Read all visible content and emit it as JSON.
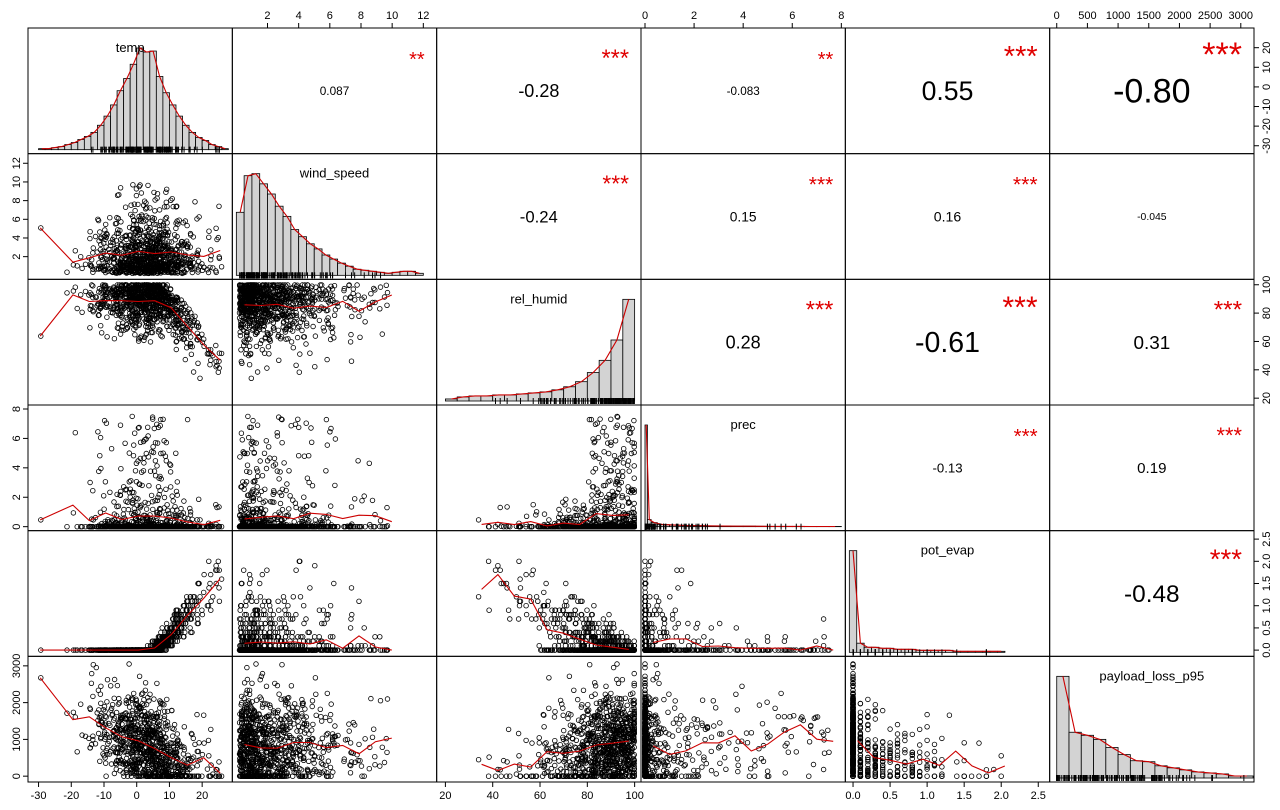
{
  "chart_data": {
    "type": "scatter-matrix",
    "variables": [
      "temp",
      "wind_speed",
      "rel_humid",
      "prec",
      "pot_evap",
      "payload_loss_p95"
    ],
    "ranges": [
      [
        -32,
        28
      ],
      [
        0,
        12.6
      ],
      [
        18,
        101
      ],
      [
        0,
        8
      ],
      [
        -0.05,
        2.6
      ],
      [
        -50,
        3150
      ]
    ],
    "ticks": [
      [
        -30,
        -20,
        -10,
        0,
        10,
        20
      ],
      [
        2,
        4,
        6,
        8,
        10,
        12
      ],
      [
        20,
        40,
        60,
        80,
        100
      ],
      [
        0,
        2,
        4,
        6,
        8
      ],
      [
        0.0,
        0.5,
        1.0,
        1.5,
        2.0,
        2.5
      ],
      [
        0,
        500,
        1000,
        1500,
        2000,
        2500,
        3000
      ]
    ],
    "left_axis_ticks": {
      "1": [
        "2",
        "4",
        "6",
        "8",
        "10",
        "12"
      ],
      "3": [
        "0",
        "2",
        "4",
        "6",
        "8"
      ],
      "5": [
        "0",
        "1000",
        "2000",
        "3000"
      ]
    },
    "right_axis_ticks": {
      "0": [
        "-30",
        "-20",
        "-10",
        "0",
        "10",
        "20"
      ],
      "2": [
        "20",
        "40",
        "60",
        "80",
        "100"
      ],
      "4": [
        "0.0",
        "0.5",
        "1.0",
        "1.5",
        "2.0",
        "2.5"
      ]
    },
    "top_axis_ticks": {
      "1": [
        "2",
        "4",
        "6",
        "8",
        "10",
        "12"
      ],
      "3": [
        "0",
        "2",
        "4",
        "6",
        "8"
      ],
      "5": [
        "0",
        "500",
        "1000",
        "1500",
        "2000",
        "2500",
        "3000"
      ]
    },
    "bottom_axis_ticks": {
      "0": [
        "-30",
        "-20",
        "-10",
        "0",
        "10",
        "20"
      ],
      "2": [
        "20",
        "40",
        "60",
        "80",
        "100"
      ],
      "4": [
        "0.0",
        "0.5",
        "1.0",
        "1.5",
        "2.0",
        "2.5"
      ]
    },
    "correlations": [
      {
        "row": 0,
        "col": 1,
        "r": "0.087",
        "stars": "**"
      },
      {
        "row": 0,
        "col": 2,
        "r": "-0.28",
        "stars": "***"
      },
      {
        "row": 0,
        "col": 3,
        "r": "-0.083",
        "stars": "**"
      },
      {
        "row": 0,
        "col": 4,
        "r": "0.55",
        "stars": "***"
      },
      {
        "row": 0,
        "col": 5,
        "r": "-0.80",
        "stars": "***"
      },
      {
        "row": 1,
        "col": 2,
        "r": "-0.24",
        "stars": "***"
      },
      {
        "row": 1,
        "col": 3,
        "r": "0.15",
        "stars": "***"
      },
      {
        "row": 1,
        "col": 4,
        "r": "0.16",
        "stars": "***"
      },
      {
        "row": 1,
        "col": 5,
        "r": "-0.045",
        "stars": ""
      },
      {
        "row": 2,
        "col": 3,
        "r": "0.28",
        "stars": "***"
      },
      {
        "row": 2,
        "col": 4,
        "r": "-0.61",
        "stars": "***"
      },
      {
        "row": 2,
        "col": 5,
        "r": "0.31",
        "stars": "***"
      },
      {
        "row": 3,
        "col": 4,
        "r": "-0.13",
        "stars": "***"
      },
      {
        "row": 3,
        "col": 5,
        "r": "0.19",
        "stars": "***"
      },
      {
        "row": 4,
        "col": 5,
        "r": "-0.48",
        "stars": "***"
      }
    ],
    "histograms": [
      {
        "var": "temp",
        "bins": [
          -30,
          -28,
          -26,
          -24,
          -22,
          -20,
          -18,
          -16,
          -14,
          -12,
          -10,
          -8,
          -6,
          -4,
          -2,
          0,
          2,
          4,
          6,
          8,
          10,
          12,
          14,
          16,
          18,
          20,
          22,
          24,
          26,
          28
        ],
        "density": [
          0.01,
          0.01,
          0.02,
          0.03,
          0.05,
          0.07,
          0.1,
          0.13,
          0.17,
          0.24,
          0.33,
          0.44,
          0.58,
          0.7,
          0.84,
          1.0,
          0.96,
          0.97,
          0.72,
          0.56,
          0.44,
          0.33,
          0.24,
          0.17,
          0.12,
          0.09,
          0.05,
          0.03,
          0.01
        ]
      },
      {
        "var": "wind_speed",
        "bins": [
          0,
          0.5,
          1,
          1.5,
          2,
          2.5,
          3,
          3.5,
          4,
          4.5,
          5,
          5.5,
          6,
          6.5,
          7,
          7.5,
          8,
          8.5,
          9,
          9.5,
          10,
          10.5,
          11,
          11.5,
          12
        ],
        "density": [
          0.62,
          0.98,
          1.0,
          0.9,
          0.8,
          0.68,
          0.58,
          0.45,
          0.38,
          0.31,
          0.26,
          0.2,
          0.16,
          0.12,
          0.09,
          0.06,
          0.05,
          0.04,
          0.03,
          0.02,
          0.03,
          0.04,
          0.04,
          0.02
        ]
      },
      {
        "var": "rel_humid",
        "bins": [
          20,
          25,
          30,
          35,
          40,
          45,
          50,
          55,
          60,
          65,
          70,
          75,
          80,
          85,
          90,
          95,
          100
        ],
        "density": [
          0.02,
          0.04,
          0.05,
          0.05,
          0.06,
          0.06,
          0.07,
          0.08,
          0.09,
          0.11,
          0.14,
          0.19,
          0.28,
          0.4,
          0.6,
          1.0
        ]
      },
      {
        "var": "prec",
        "bins": [
          0,
          0.1,
          0.25,
          0.5,
          1,
          1.5,
          2,
          2.5,
          3,
          3.5,
          4,
          4.5,
          5,
          5.5,
          6,
          6.5,
          7,
          7.5,
          8
        ],
        "density": [
          1.0,
          0.07,
          0.04,
          0.02,
          0.015,
          0.01,
          0.01,
          0.008,
          0.006,
          0.005,
          0.005,
          0.004,
          0.003,
          0.003,
          0.003,
          0.002,
          0.002,
          0.002
        ]
      },
      {
        "var": "pot_evap",
        "bins": [
          -0.05,
          0.05,
          0.15,
          0.25,
          0.35,
          0.45,
          0.55,
          0.65,
          0.75,
          0.85,
          0.95,
          1.05,
          1.15,
          1.25,
          1.35,
          1.45,
          1.55,
          1.65,
          1.75,
          1.85,
          1.95,
          2.05
        ],
        "density": [
          1.0,
          0.09,
          0.05,
          0.05,
          0.04,
          0.04,
          0.03,
          0.03,
          0.03,
          0.02,
          0.02,
          0.02,
          0.02,
          0.02,
          0.01,
          0.01,
          0.01,
          0.01,
          0.01,
          0.01,
          0.01
        ]
      },
      {
        "var": "payload_loss_p95",
        "bins": [
          0,
          200,
          400,
          600,
          800,
          1000,
          1200,
          1400,
          1600,
          1800,
          2000,
          2200,
          2400,
          2600,
          2800,
          3000,
          3200
        ],
        "density": [
          1.0,
          0.45,
          0.42,
          0.38,
          0.3,
          0.23,
          0.17,
          0.16,
          0.12,
          0.1,
          0.08,
          0.06,
          0.05,
          0.04,
          0.02,
          0.02
        ]
      }
    ],
    "grid": false
  }
}
